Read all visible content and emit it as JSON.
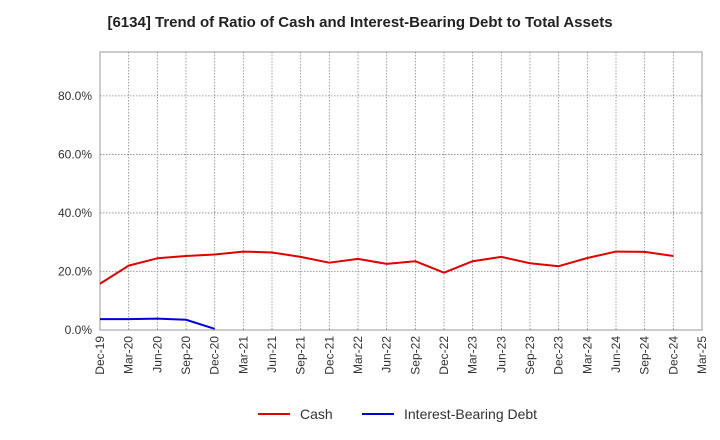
{
  "chart_data": {
    "type": "line",
    "title": "[6134]  Trend of Ratio of Cash and Interest-Bearing Debt to Total Assets",
    "xlabel": "",
    "ylabel": "",
    "ylim": [
      0,
      95
    ],
    "y_ticks": [
      0,
      20,
      40,
      60,
      80
    ],
    "y_tick_labels": [
      "0.0%",
      "20.0%",
      "40.0%",
      "60.0%",
      "80.0%"
    ],
    "x_tick_labels": [
      "Dec-19",
      "Mar-20",
      "Jun-20",
      "Sep-20",
      "Dec-20",
      "Mar-21",
      "Jun-21",
      "Sep-21",
      "Dec-21",
      "Mar-22",
      "Jun-22",
      "Sep-22",
      "Dec-22",
      "Mar-23",
      "Jun-23",
      "Sep-23",
      "Dec-23",
      "Mar-24",
      "Jun-24",
      "Sep-24",
      "Dec-24",
      "Mar-25"
    ],
    "grid": true,
    "legend_position": "bottom",
    "series": [
      {
        "name": "Cash",
        "color": "#e00000",
        "values": [
          15.8,
          22.0,
          24.5,
          25.3,
          25.8,
          26.8,
          26.5,
          25.0,
          23.0,
          24.3,
          22.6,
          23.5,
          19.6,
          23.5,
          25.0,
          22.8,
          21.8,
          24.6,
          26.8,
          26.7,
          25.3
        ]
      },
      {
        "name": "Interest-Bearing Debt",
        "color": "#0000dd",
        "values": [
          3.7,
          3.7,
          3.9,
          3.5,
          0.4
        ]
      }
    ]
  }
}
